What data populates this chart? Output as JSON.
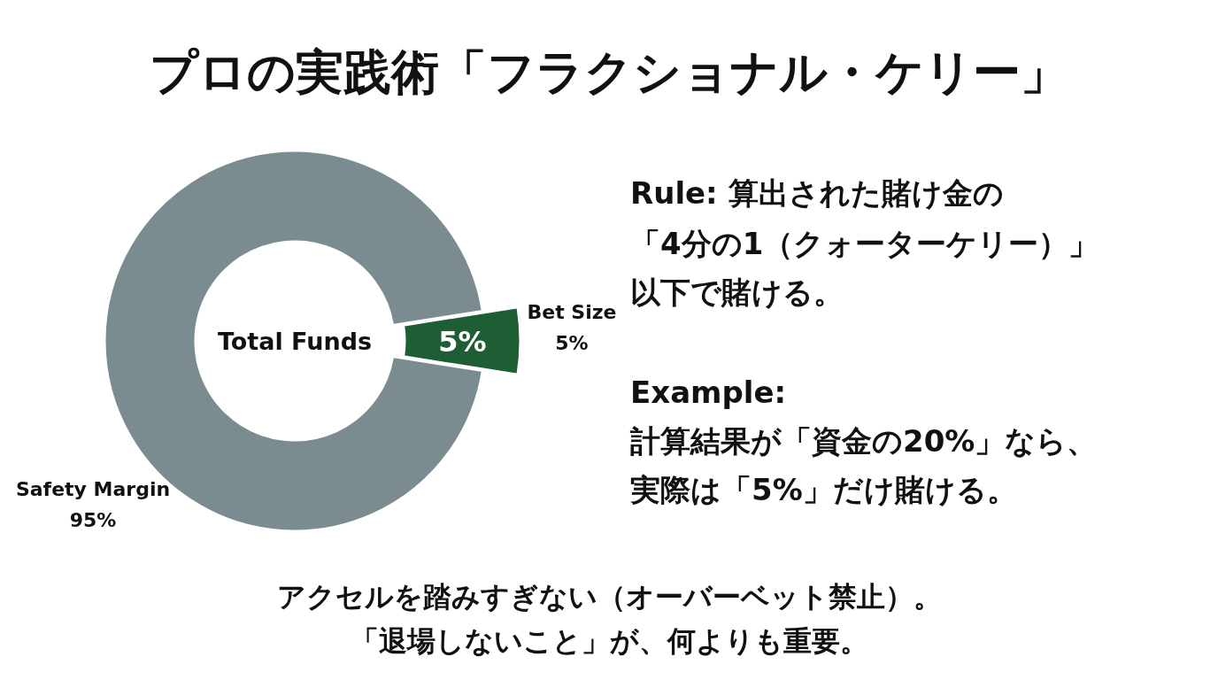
{
  "chart_data": {
    "type": "donut",
    "title": "プロの実践術「フラクショナル・ケリー」",
    "categories": [
      "Safety Margin",
      "Bet Size"
    ],
    "values": [
      95,
      5
    ],
    "value_labels": [
      "95%",
      "5%"
    ],
    "colors": [
      "#7b8c90",
      "#1e5e34"
    ],
    "annotations": [
      "Total Funds",
      {
        "text": "5%",
        "x": "Bet Size"
      },
      "Rule: 算出された賭け金の",
      "「4分の1（クォーターケリー）」",
      "以下で賭ける。",
      "Example:",
      "計算結果が「資金の20%」なら、",
      "実際は「5%」だけ賭ける。",
      "アクセルを踏みすぎない（オーバーベット禁止）。",
      "「退場しないこと」が、何よりも重要。"
    ]
  }
}
